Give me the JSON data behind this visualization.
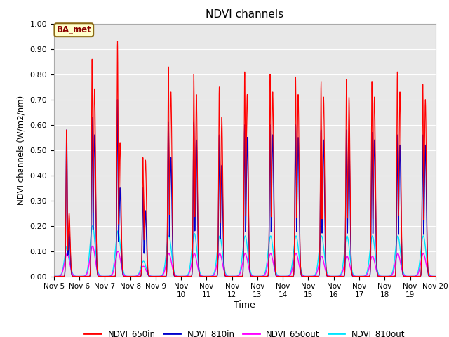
{
  "title": "NDVI channels",
  "xlabel": "Time",
  "ylabel": "NDVI channels (W/m2/nm)",
  "ylim": [
    0.0,
    1.0
  ],
  "yticks": [
    0.0,
    0.1,
    0.2,
    0.3,
    0.4,
    0.5,
    0.6,
    0.7,
    0.8,
    0.9,
    1.0
  ],
  "xtick_positions": [
    5,
    6,
    7,
    8,
    9,
    10,
    11,
    12,
    13,
    14,
    15,
    16,
    17,
    18,
    19,
    20
  ],
  "xtick_labels": [
    "Nov 5",
    "Nov 6",
    "Nov 7",
    "Nov 8",
    "Nov 9",
    "Nov\n10",
    "Nov\n11",
    "Nov\n12",
    "Nov\n13",
    "Nov\n14",
    "Nov\n15",
    "Nov\n16",
    "Nov\n17",
    "Nov\n18",
    "Nov\n19",
    "Nov 20"
  ],
  "annotation_text": "BA_met",
  "colors": {
    "NDVI_650in": "#ff0000",
    "NDVI_810in": "#0000cc",
    "NDVI_650out": "#ff00ff",
    "NDVI_810out": "#00e5ff"
  },
  "bg_color": "#e8e8e8",
  "daily_peaks_650in": [
    0.58,
    0.86,
    0.93,
    0.47,
    0.83,
    0.8,
    0.75,
    0.81,
    0.8,
    0.79,
    0.77,
    0.78,
    0.77,
    0.81,
    0.76
  ],
  "daily_peaks_810in": [
    0.58,
    0.63,
    0.7,
    0.35,
    0.61,
    0.61,
    0.56,
    0.6,
    0.6,
    0.6,
    0.58,
    0.58,
    0.57,
    0.56,
    0.56
  ],
  "daily_peaks_650out": [
    0.09,
    0.12,
    0.1,
    0.04,
    0.09,
    0.09,
    0.09,
    0.09,
    0.09,
    0.09,
    0.08,
    0.08,
    0.08,
    0.09,
    0.09
  ],
  "daily_peaks_810out": [
    0.12,
    0.2,
    0.18,
    0.06,
    0.16,
    0.17,
    0.16,
    0.16,
    0.16,
    0.16,
    0.16,
    0.16,
    0.16,
    0.16,
    0.16
  ],
  "secondary_peaks_650in": [
    0.25,
    0.74,
    0.53,
    0.46,
    0.73,
    0.72,
    0.63,
    0.72,
    0.73,
    0.72,
    0.71,
    0.71,
    0.71,
    0.73,
    0.7
  ],
  "secondary_peaks_810in": [
    0.18,
    0.56,
    0.35,
    0.26,
    0.47,
    0.54,
    0.44,
    0.55,
    0.56,
    0.55,
    0.54,
    0.54,
    0.54,
    0.52,
    0.52
  ],
  "peak_main_sigma": 0.025,
  "peak_secondary_sigma": 0.04,
  "out_sigma": 0.1
}
